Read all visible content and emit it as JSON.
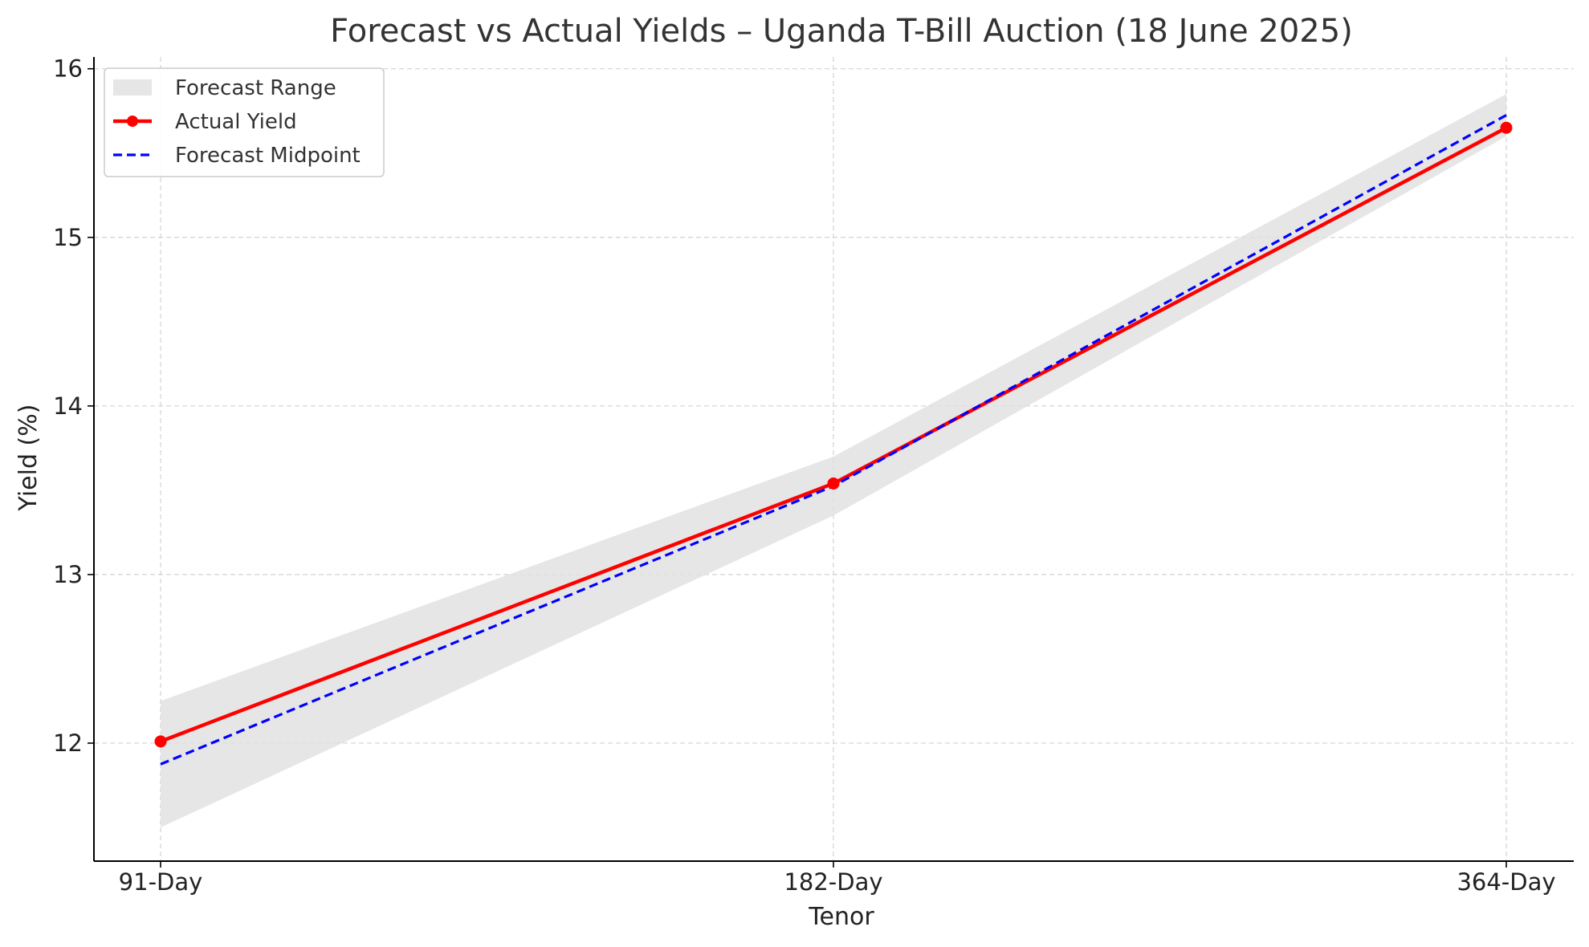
{
  "chart_data": {
    "type": "line",
    "title": "Forecast vs Actual Yields – Uganda T-Bill Auction (18 June 2025)",
    "xlabel": "Tenor",
    "ylabel": "Yield (%)",
    "categories": [
      "91-Day",
      "182-Day",
      "364-Day"
    ],
    "ylim": [
      11.3,
      16.07
    ],
    "yticks": [
      12,
      13,
      14,
      15,
      16
    ],
    "grid": true,
    "legend_position": "top-left",
    "series": [
      {
        "name": "Forecast Range",
        "kind": "band",
        "lower": [
          11.5,
          13.35,
          15.6
        ],
        "upper": [
          12.25,
          13.7,
          15.85
        ],
        "color": "#e0e0e0"
      },
      {
        "name": "Actual Yield",
        "kind": "line-markers",
        "values": [
          12.01,
          13.54,
          15.65
        ],
        "color": "#ff0000"
      },
      {
        "name": "Forecast Midpoint",
        "kind": "dashed-line",
        "values": [
          11.875,
          13.525,
          15.725
        ],
        "color": "#0000ff"
      }
    ]
  }
}
